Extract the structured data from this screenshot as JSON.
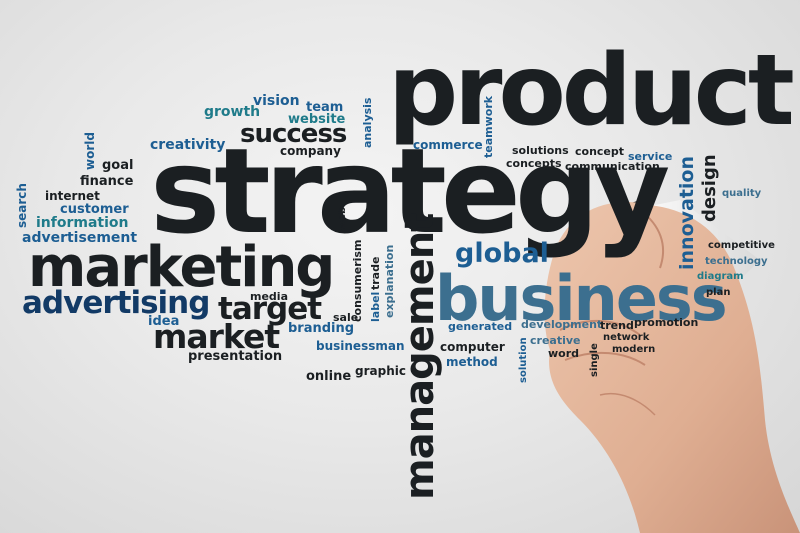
{
  "words": {
    "product": "product",
    "strategy": "strategy",
    "business": "business",
    "marketing": "marketing",
    "management": "management",
    "advertising": "advertising",
    "market": "market",
    "target": "target",
    "success": "success",
    "global": "global",
    "innovation": "innovation",
    "design": "design",
    "vision": "vision",
    "team": "team",
    "growth": "growth",
    "website": "website",
    "analysis": "analysis",
    "teamwork": "teamwork",
    "creativity": "creativity",
    "company": "company",
    "commerce": "commerce",
    "solutions": "solutions",
    "concept": "concept",
    "service": "service",
    "concepts": "concepts",
    "communication": "communication",
    "world": "world",
    "goal": "goal",
    "finance": "finance",
    "internet": "internet",
    "search": "search",
    "customer": "customer",
    "information": "information",
    "advertisement": "advertisement",
    "quality": "quality",
    "competitive": "competitive",
    "technology": "technology",
    "diagram": "diagram",
    "plan": "plan",
    "web": "web",
    "consumerism": "consumerism",
    "trade": "trade",
    "label": "label",
    "explanation": "explanation",
    "media": "media",
    "sale": "sale",
    "branding": "branding",
    "idea": "idea",
    "generated": "generated",
    "development": "development",
    "trend": "trend",
    "promotion": "promotion",
    "presentation": "presentation",
    "businessman": "businessman",
    "computer": "computer",
    "creative": "creative",
    "network": "network",
    "word": "word",
    "single": "single",
    "modern": "modern",
    "solution": "solution",
    "online": "online",
    "graphic": "graphic",
    "method": "method"
  },
  "colors": {
    "dark": "#1b1f22",
    "navy": "#123a66",
    "blue": "#1d5e93",
    "teal": "#1f7b8a",
    "background": "#e9e9e9",
    "skin": "#e4b79a"
  },
  "objects": {
    "hand": "hand-holding-marker",
    "marker": "white-marker"
  }
}
